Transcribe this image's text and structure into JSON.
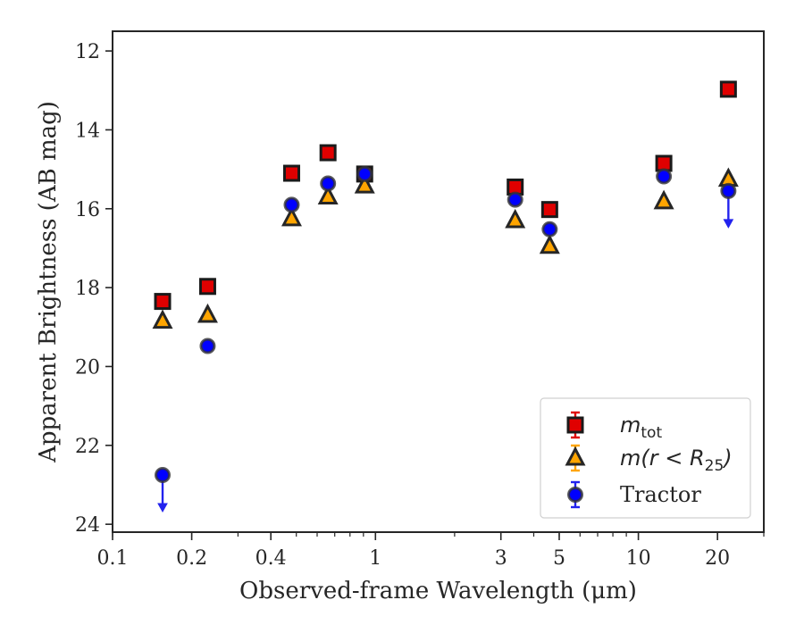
{
  "chart_data": {
    "type": "scatter",
    "xlabel": "Observed-frame Wavelength (μm)",
    "ylabel": "Apparent Brightness (AB mag)",
    "x_scale": "log",
    "xlim": [
      0.1,
      30
    ],
    "ylim": [
      24.2,
      11.5
    ],
    "y_inverted": true,
    "x_ticks": [
      0.1,
      0.2,
      0.4,
      1,
      3,
      5,
      10,
      20
    ],
    "x_tick_labels": [
      "0.1",
      "0.2",
      "0.4",
      "1",
      "3",
      "5",
      "10",
      "20"
    ],
    "y_ticks": [
      12,
      14,
      16,
      18,
      20,
      22,
      24
    ],
    "y_tick_labels": [
      "12",
      "14",
      "16",
      "18",
      "20",
      "22",
      "24"
    ],
    "grid": false,
    "legend_position": "lower-right",
    "series": [
      {
        "name": "m_tot",
        "label_main": "m",
        "label_sub": "tot",
        "marker": "square",
        "color": "#e00000",
        "points": [
          {
            "x": 0.155,
            "y": 18.35
          },
          {
            "x": 0.23,
            "y": 17.97
          },
          {
            "x": 0.48,
            "y": 15.1
          },
          {
            "x": 0.66,
            "y": 14.58
          },
          {
            "x": 0.91,
            "y": 15.12
          },
          {
            "x": 3.4,
            "y": 15.45
          },
          {
            "x": 4.6,
            "y": 16.02
          },
          {
            "x": 12.5,
            "y": 14.85
          },
          {
            "x": 22.0,
            "y": 12.97
          }
        ]
      },
      {
        "name": "m(r < R25)",
        "label_main": "m(r < R",
        "label_sub": "25",
        "label_end": ")",
        "marker": "triangle",
        "color": "#ffa500",
        "points": [
          {
            "x": 0.155,
            "y": 18.85
          },
          {
            "x": 0.23,
            "y": 18.7
          },
          {
            "x": 0.48,
            "y": 16.25
          },
          {
            "x": 0.66,
            "y": 15.7
          },
          {
            "x": 0.91,
            "y": 15.42
          },
          {
            "x": 3.4,
            "y": 16.3
          },
          {
            "x": 4.6,
            "y": 16.95
          },
          {
            "x": 12.5,
            "y": 15.82
          },
          {
            "x": 22.0,
            "y": 15.25
          }
        ]
      },
      {
        "name": "Tractor",
        "marker": "circle",
        "color": "#0000ff",
        "points": [
          {
            "x": 0.155,
            "y": 22.75,
            "upper_limit": true
          },
          {
            "x": 0.23,
            "y": 19.48
          },
          {
            "x": 0.48,
            "y": 15.9
          },
          {
            "x": 0.66,
            "y": 15.36
          },
          {
            "x": 0.91,
            "y": 15.12
          },
          {
            "x": 3.4,
            "y": 15.77
          },
          {
            "x": 4.6,
            "y": 16.52
          },
          {
            "x": 12.5,
            "y": 15.18
          },
          {
            "x": 22.0,
            "y": 15.55,
            "upper_limit": true
          }
        ]
      }
    ]
  }
}
